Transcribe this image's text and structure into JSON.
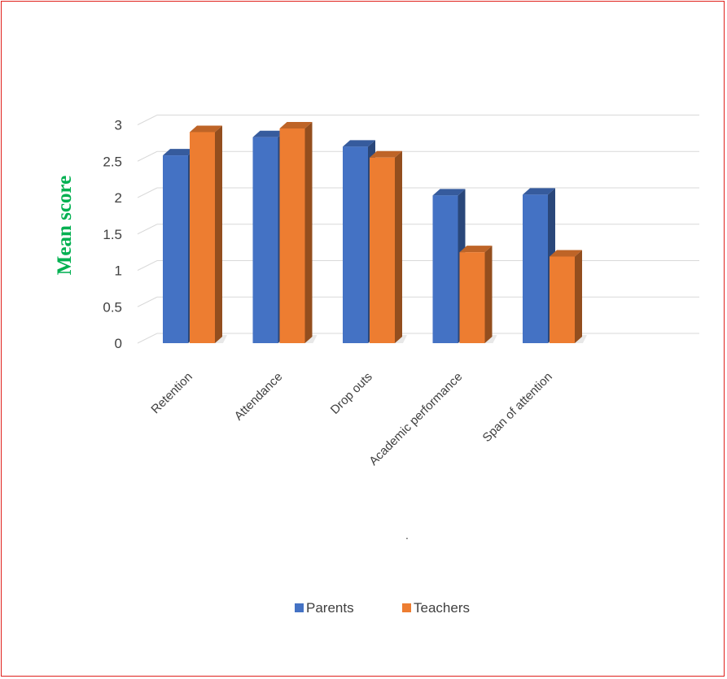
{
  "chart_data": {
    "type": "bar",
    "categories": [
      "Retention",
      "Attendance",
      "Drop outs",
      "Academic performance",
      "Span of attention"
    ],
    "series": [
      {
        "name": "Parents",
        "values": [
          2.58,
          2.83,
          2.7,
          2.03,
          2.04
        ],
        "color": "#4472c4"
      },
      {
        "name": "Teachers",
        "values": [
          2.9,
          2.95,
          2.55,
          1.25,
          1.19
        ],
        "color": "#ed7d31"
      }
    ],
    "yticks": [
      "0",
      "0.5",
      "1",
      "1.5",
      "2",
      "2.5",
      "3"
    ],
    "ylim": [
      0,
      3
    ],
    "ylabel": "Mean score",
    "xlabel": ".",
    "title": "",
    "grid": true,
    "three_d": true,
    "legend_position": "bottom"
  },
  "colors": {
    "frame": "#e0201b",
    "ylabel": "#00b050",
    "grid": "#d9d9d9"
  }
}
